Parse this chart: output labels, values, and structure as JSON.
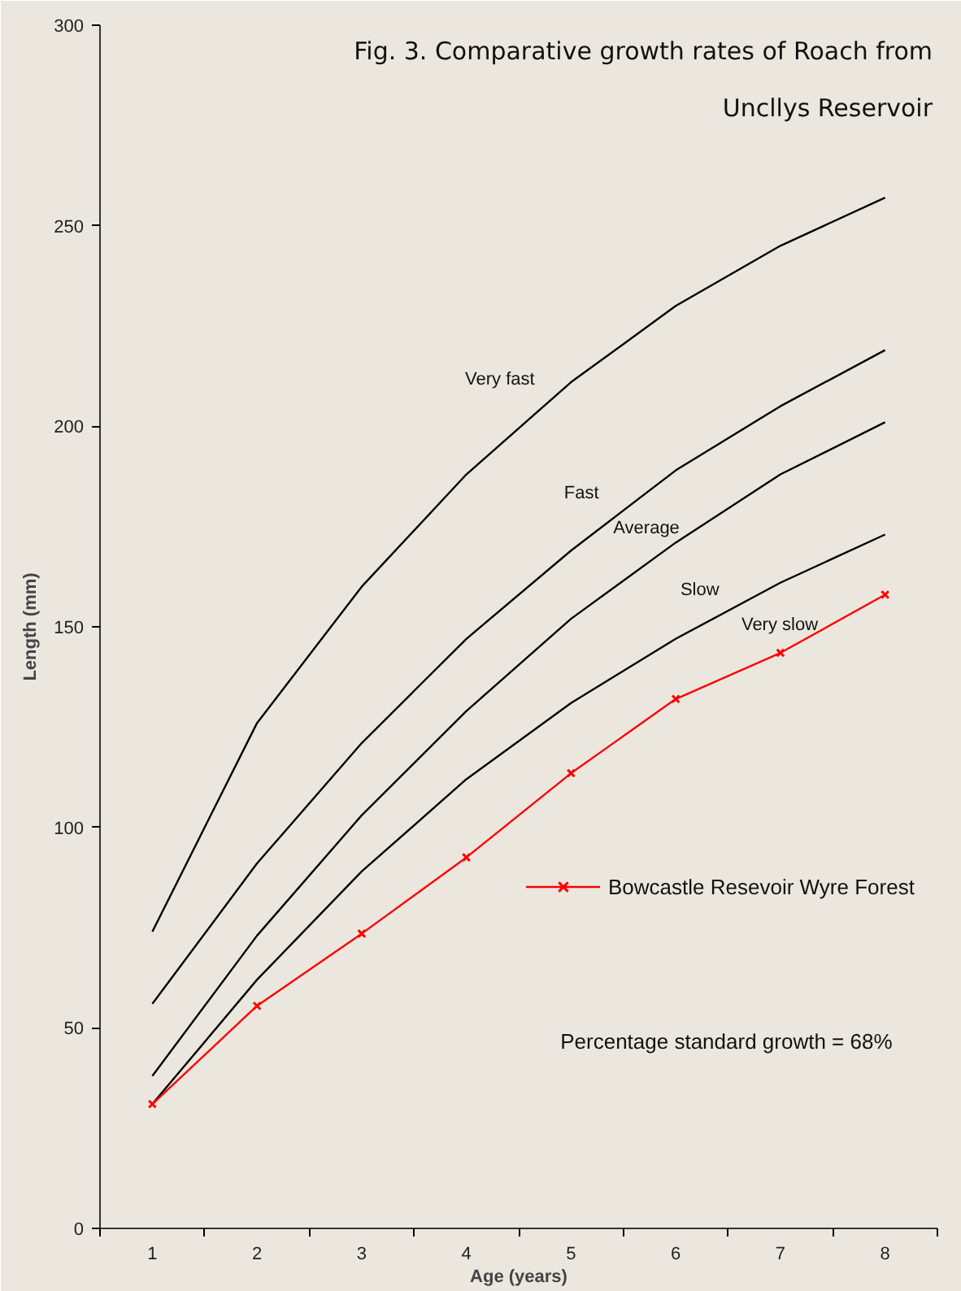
{
  "chart_data": {
    "type": "line",
    "title": "Fig. 3. Comparative growth rates of Roach from\nUncllys Reservoir",
    "xlabel": "Age (years)",
    "ylabel": "Length (mm)",
    "x": [
      1,
      2,
      3,
      4,
      5,
      6,
      7,
      8
    ],
    "xlim": [
      0.5,
      8.5
    ],
    "xticks": [
      {
        "value": 0.5,
        "label": null
      },
      1,
      {
        "value": 1.5,
        "label": null
      },
      2,
      {
        "value": 2.5,
        "label": null
      },
      3,
      {
        "value": 3.5,
        "label": null
      },
      4,
      {
        "value": 4.5,
        "label": null
      },
      5,
      {
        "value": 5.5,
        "label": null
      },
      6,
      {
        "value": 6.5,
        "label": null
      },
      7,
      {
        "value": 7.5,
        "label": null
      },
      8,
      {
        "value": 8.5,
        "label": null
      }
    ],
    "ylim": [
      0,
      300
    ],
    "yticks": [
      0,
      50,
      100,
      150,
      200,
      250,
      300
    ],
    "grid": false,
    "legend": "right",
    "series": [
      {
        "name": "Very fast",
        "color": "#000000",
        "marker": "none",
        "values": [
          74,
          126,
          160,
          188,
          211,
          230,
          245,
          257
        ]
      },
      {
        "name": "Fast",
        "color": "#000000",
        "marker": "none",
        "values": [
          56,
          91,
          121,
          147,
          169,
          189,
          205,
          219
        ]
      },
      {
        "name": "Average",
        "color": "#000000",
        "marker": "none",
        "values": [
          38,
          73,
          103,
          129,
          152,
          171,
          188,
          201
        ]
      },
      {
        "name": "Slow",
        "color": "#000000",
        "marker": "none",
        "values": [
          31,
          62,
          89,
          112,
          131,
          147,
          161,
          173
        ]
      },
      {
        "name": "Bowcastle Resevoir Wyre Forest",
        "color": "#ff0000",
        "marker": "cross",
        "values": [
          31,
          55.5,
          73.5,
          92.5,
          113.5,
          132,
          143.5,
          158
        ]
      }
    ],
    "annotations": [
      "Very slow",
      "Percentage standard growth =  68%"
    ]
  }
}
